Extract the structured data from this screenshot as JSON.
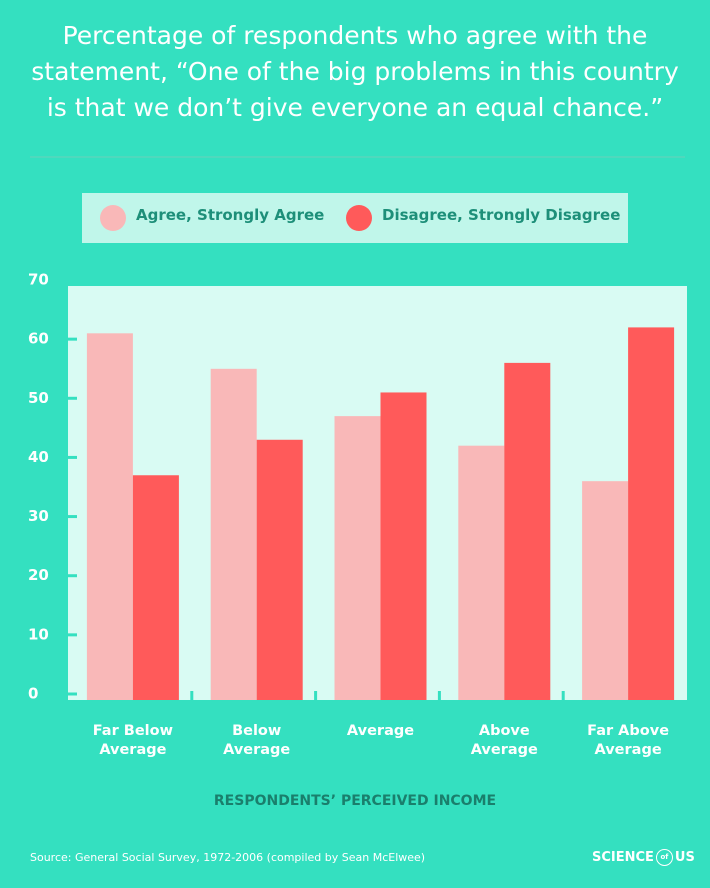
{
  "title": "Percentage of respondents who agree with the statement, “One of the big problems in this country is that we don’t give everyone an equal chance.”",
  "chart_data": {
    "type": "bar",
    "categories": [
      "Far Below Average",
      "Below Average",
      "Average",
      "Above Average",
      "Far Above Average"
    ],
    "series": [
      {
        "name": "Agree, Strongly Agree",
        "color": "#f9b8b8",
        "values": [
          62,
          56,
          48,
          43,
          37
        ]
      },
      {
        "name": "Disagree, Strongly Disagree",
        "color": "#ff5a5a",
        "values": [
          38,
          44,
          52,
          57,
          63
        ]
      }
    ],
    "ylim": [
      0,
      70
    ],
    "yticks": [
      0,
      10,
      20,
      30,
      40,
      50,
      60,
      70
    ],
    "xlabel": "RESPONDENTS’ PERCEIVED INCOME"
  },
  "source": "Source: General Social Survey, 1972-2006 (compiled by Sean McElwee)",
  "logo": {
    "left": "SCIENCE",
    "middle": "of",
    "right": "US"
  }
}
